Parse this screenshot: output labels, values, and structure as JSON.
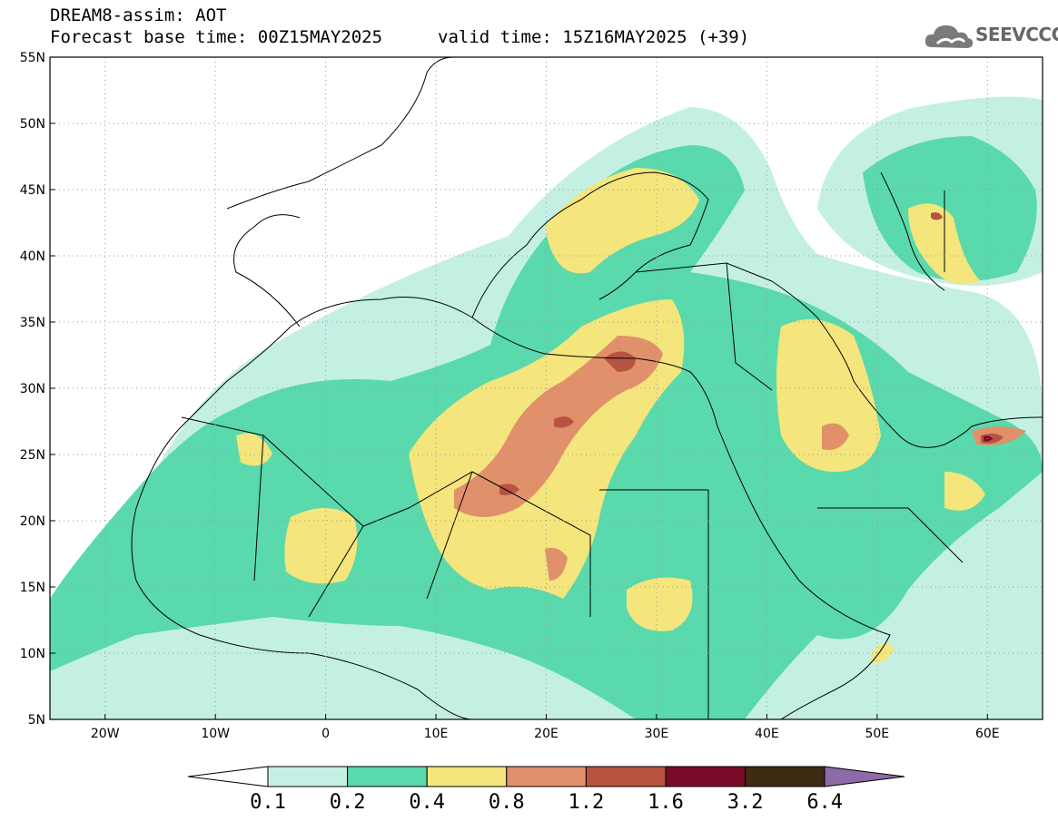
{
  "header": {
    "model_title": "DREAM8-assim: AOT",
    "base_time": "Forecast base time: 00Z15MAY2025",
    "valid_time": "valid time: 15Z16MAY2025 (+39)",
    "logo_text": "SEEVCCC",
    "logo_icon": "cloud-icon"
  },
  "map": {
    "lat_labels": [
      "55N",
      "50N",
      "45N",
      "40N",
      "35N",
      "30N",
      "25N",
      "20N",
      "15N",
      "10N",
      "5N"
    ],
    "lon_labels": [
      "20W",
      "10W",
      "0",
      "10E",
      "20E",
      "30E",
      "40E",
      "50E",
      "60E"
    ],
    "lat_range": [
      5,
      55
    ],
    "lon_range": [
      -25,
      65
    ],
    "grid": "dotted"
  },
  "colorbar": {
    "levels": [
      "0.1",
      "0.2",
      "0.4",
      "0.8",
      "1.2",
      "1.6",
      "3.2",
      "6.4"
    ],
    "colors": {
      "c01": "#c4f0e4",
      "c02": "#5ad9ac",
      "c04": "#f4e57c",
      "c08": "#e0906a",
      "c12": "#b75340",
      "c16": "#7a0c2a",
      "c32": "#3f2a14",
      "c64": "#8e6aa8",
      "low": "#ffffff"
    }
  }
}
